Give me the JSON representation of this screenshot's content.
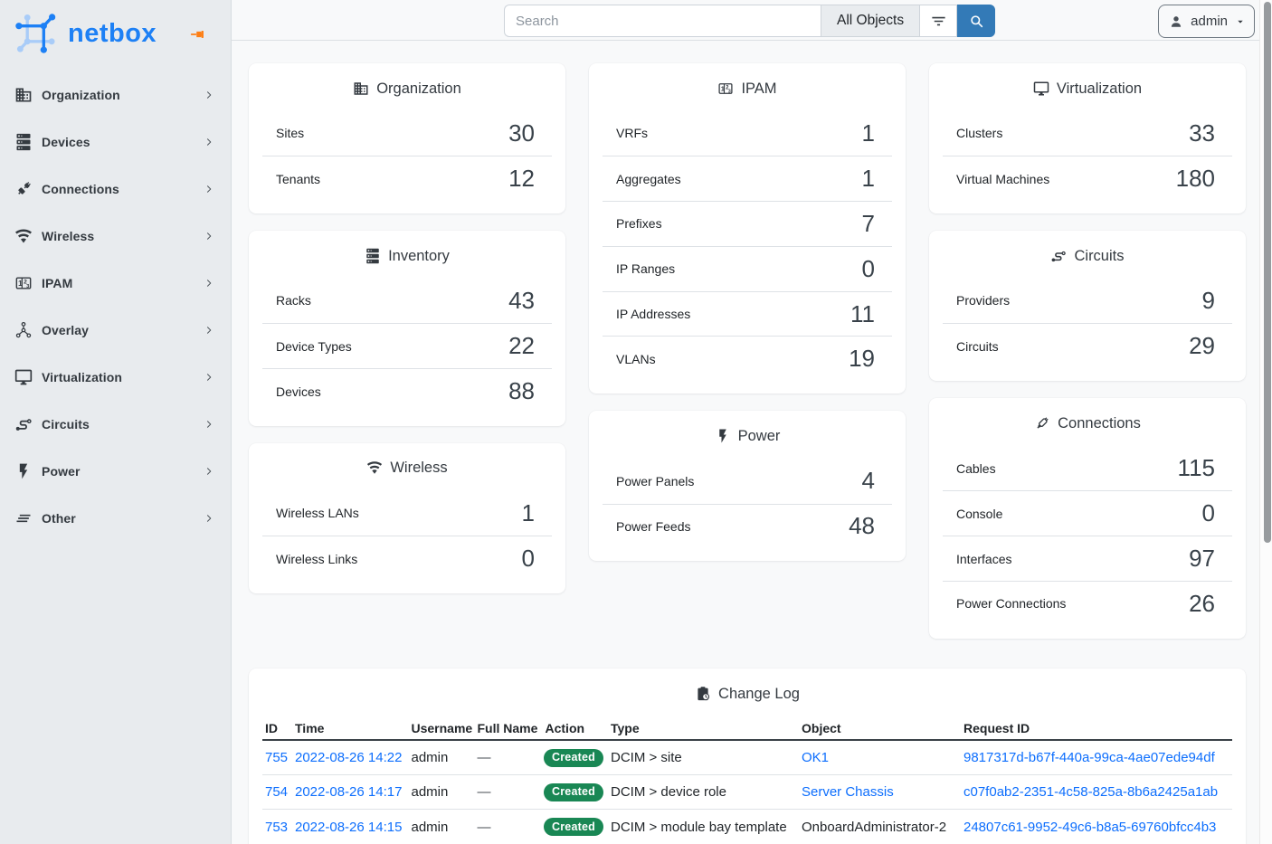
{
  "brand": {
    "name": "netbox"
  },
  "sidebar": {
    "items": [
      {
        "label": "Organization",
        "icon": "building"
      },
      {
        "label": "Devices",
        "icon": "server"
      },
      {
        "label": "Connections",
        "icon": "plug"
      },
      {
        "label": "Wireless",
        "icon": "wifi"
      },
      {
        "label": "IPAM",
        "icon": "counter"
      },
      {
        "label": "Overlay",
        "icon": "graph"
      },
      {
        "label": "Virtualization",
        "icon": "monitor"
      },
      {
        "label": "Circuits",
        "icon": "transit"
      },
      {
        "label": "Power",
        "icon": "flash"
      },
      {
        "label": "Other",
        "icon": "lines"
      }
    ]
  },
  "topbar": {
    "search_placeholder": "Search",
    "scope_label": "All Objects",
    "user_label": "admin"
  },
  "cards": [
    {
      "title": "Organization",
      "icon": "building",
      "col": 1,
      "rows": [
        {
          "label": "Sites",
          "value": "30"
        },
        {
          "label": "Tenants",
          "value": "12"
        }
      ]
    },
    {
      "title": "Inventory",
      "icon": "server",
      "col": 1,
      "rows": [
        {
          "label": "Racks",
          "value": "43"
        },
        {
          "label": "Device Types",
          "value": "22"
        },
        {
          "label": "Devices",
          "value": "88"
        }
      ]
    },
    {
      "title": "Wireless",
      "icon": "wifi",
      "col": 1,
      "rows": [
        {
          "label": "Wireless LANs",
          "value": "1"
        },
        {
          "label": "Wireless Links",
          "value": "0"
        }
      ]
    },
    {
      "title": "IPAM",
      "icon": "counter",
      "col": 2,
      "rows": [
        {
          "label": "VRFs",
          "value": "1"
        },
        {
          "label": "Aggregates",
          "value": "1"
        },
        {
          "label": "Prefixes",
          "value": "7"
        },
        {
          "label": "IP Ranges",
          "value": "0"
        },
        {
          "label": "IP Addresses",
          "value": "11"
        },
        {
          "label": "VLANs",
          "value": "19"
        }
      ]
    },
    {
      "title": "Power",
      "icon": "flash",
      "col": 2,
      "rows": [
        {
          "label": "Power Panels",
          "value": "4"
        },
        {
          "label": "Power Feeds",
          "value": "48"
        }
      ]
    },
    {
      "title": "Virtualization",
      "icon": "monitor",
      "col": 3,
      "rows": [
        {
          "label": "Clusters",
          "value": "33"
        },
        {
          "label": "Virtual Machines",
          "value": "180"
        }
      ]
    },
    {
      "title": "Circuits",
      "icon": "transit",
      "col": 3,
      "rows": [
        {
          "label": "Providers",
          "value": "9"
        },
        {
          "label": "Circuits",
          "value": "29"
        }
      ]
    },
    {
      "title": "Connections",
      "icon": "cable",
      "col": 3,
      "rows": [
        {
          "label": "Cables",
          "value": "115"
        },
        {
          "label": "Console",
          "value": "0"
        },
        {
          "label": "Interfaces",
          "value": "97"
        },
        {
          "label": "Power Connections",
          "value": "26"
        }
      ]
    }
  ],
  "changelog": {
    "title": "Change Log",
    "icon": "clipboard-clock",
    "columns": [
      "ID",
      "Time",
      "Username",
      "Full Name",
      "Action",
      "Type",
      "Object",
      "Request ID"
    ],
    "rows": [
      {
        "id": "755",
        "time": "2022-08-26 14:22",
        "username": "admin",
        "full_name": "—",
        "action": "Created",
        "type": "DCIM > site",
        "object": "OK1",
        "object_is_link": true,
        "request_id": "9817317d-b67f-440a-99ca-4ae07ede94df"
      },
      {
        "id": "754",
        "time": "2022-08-26 14:17",
        "username": "admin",
        "full_name": "—",
        "action": "Created",
        "type": "DCIM > device role",
        "object": "Server Chassis",
        "object_is_link": true,
        "request_id": "c07f0ab2-2351-4c58-825a-8b6a2425a1ab"
      },
      {
        "id": "753",
        "time": "2022-08-26 14:15",
        "username": "admin",
        "full_name": "—",
        "action": "Created",
        "type": "DCIM > module bay template",
        "object": "OnboardAdministrator-2",
        "object_is_link": false,
        "request_id": "24807c61-9952-49c6-b8a5-69760bfcc4b3"
      }
    ]
  },
  "colors": {
    "logo_blue": "#1d80f5",
    "logo_blue_light": "#a9ccf8",
    "primary_button": "#337ab7",
    "link": "#0d6efd",
    "badge_created": "#198754",
    "pin_orange": "#fd7e14",
    "sidebar_bg": "#e9edf0"
  }
}
